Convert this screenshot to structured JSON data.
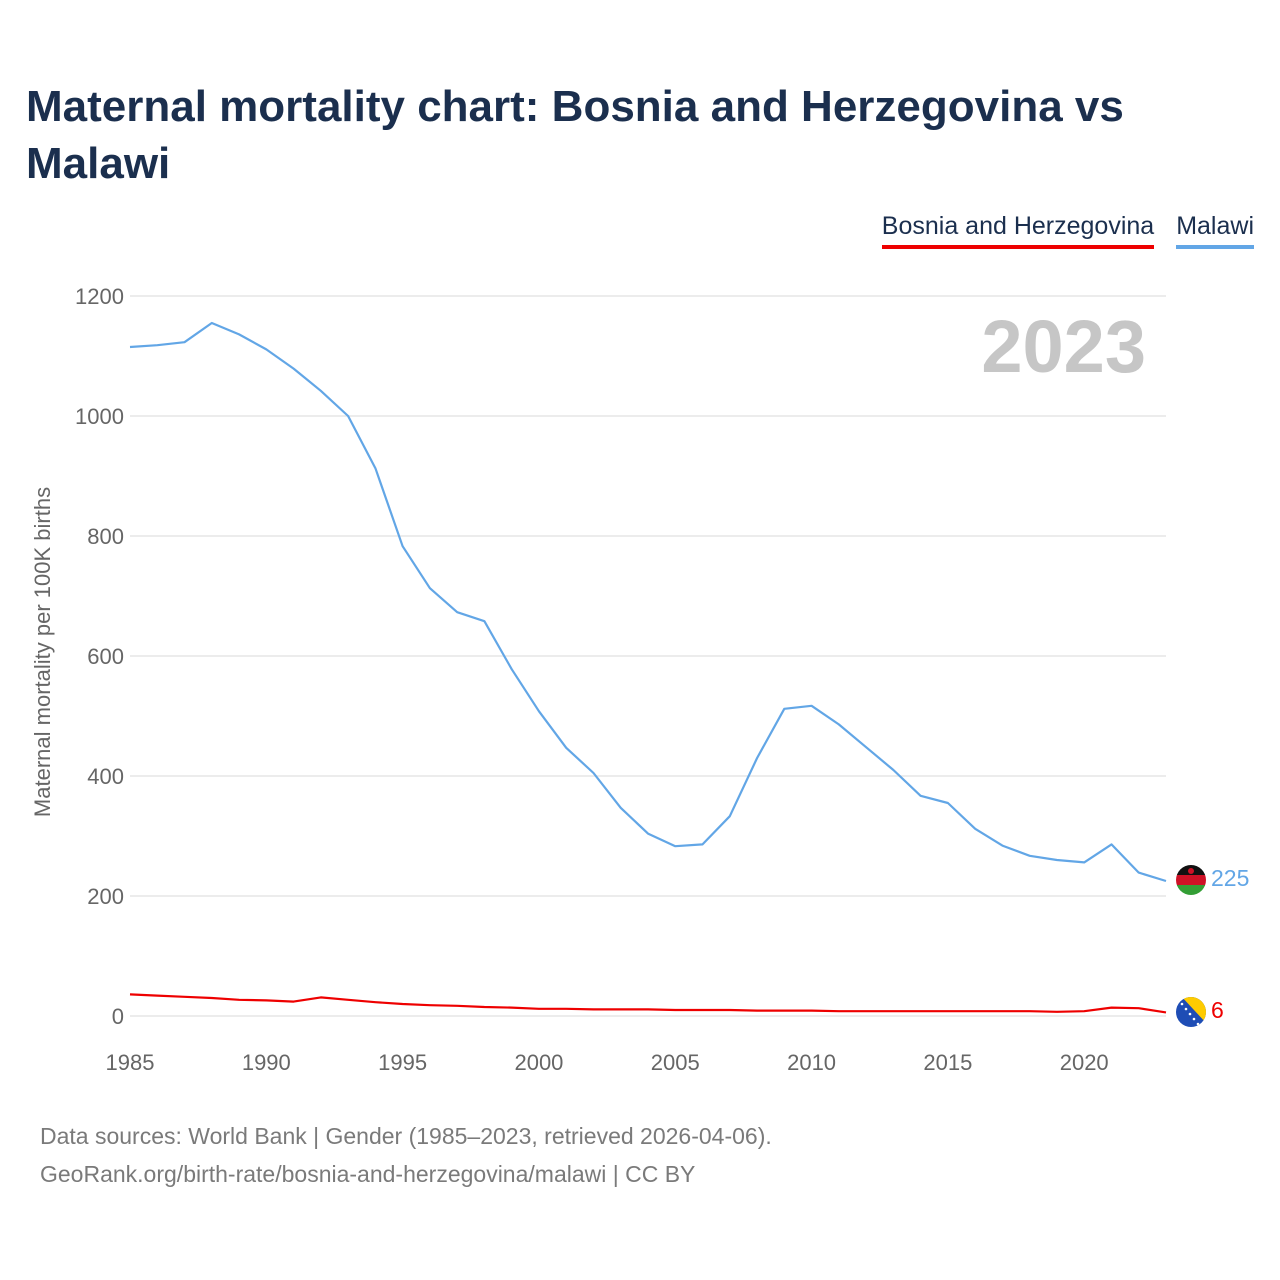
{
  "title": "Maternal mortality chart: Bosnia and Herzegovina vs Malawi",
  "legend": [
    {
      "name": "Bosnia and Herzegovina",
      "color": "#ee0000"
    },
    {
      "name": "Malawi",
      "color": "#62a6e6"
    }
  ],
  "year_watermark": "2023",
  "source_lines": [
    "Data sources: World Bank | Gender (1985–2023, retrieved 2026-04-06).",
    "GeoRank.org/birth-rate/bosnia-and-herzegovina/malawi | CC BY"
  ],
  "chart_data": {
    "type": "line",
    "title": "Maternal mortality chart: Bosnia and Herzegovina vs Malawi",
    "xlabel": "",
    "ylabel": "Maternal mortality per 100K births",
    "xlim": [
      1985,
      2023
    ],
    "ylim": [
      0,
      1200
    ],
    "xticks": [
      1985,
      1990,
      1995,
      2000,
      2005,
      2010,
      2015,
      2020
    ],
    "yticks": [
      0,
      200,
      400,
      600,
      800,
      1000,
      1200
    ],
    "x": [
      1985,
      1986,
      1987,
      1988,
      1989,
      1990,
      1991,
      1992,
      1993,
      1994,
      1995,
      1996,
      1997,
      1998,
      1999,
      2000,
      2001,
      2002,
      2003,
      2004,
      2005,
      2006,
      2007,
      2008,
      2009,
      2010,
      2011,
      2012,
      2013,
      2014,
      2015,
      2016,
      2017,
      2018,
      2019,
      2020,
      2021,
      2022,
      2023
    ],
    "series": [
      {
        "name": "Bosnia and Herzegovina",
        "color": "#ee0000",
        "end_label": "6",
        "values": [
          36,
          34,
          32,
          30,
          27,
          26,
          24,
          31,
          27,
          23,
          20,
          18,
          17,
          15,
          14,
          12,
          12,
          11,
          11,
          11,
          10,
          10,
          10,
          9,
          9,
          9,
          8,
          8,
          8,
          8,
          8,
          8,
          8,
          8,
          7,
          8,
          14,
          13,
          6
        ]
      },
      {
        "name": "Malawi",
        "color": "#62a6e6",
        "end_label": "225",
        "values": [
          1115,
          1118,
          1123,
          1155,
          1136,
          1111,
          1079,
          1042,
          1000,
          913,
          783,
          713,
          673,
          658,
          578,
          508,
          447,
          405,
          347,
          304,
          283,
          286,
          333,
          430,
          512,
          517,
          486,
          448,
          410,
          367,
          355,
          312,
          284,
          267,
          260,
          256,
          286,
          239,
          225
        ]
      }
    ]
  }
}
